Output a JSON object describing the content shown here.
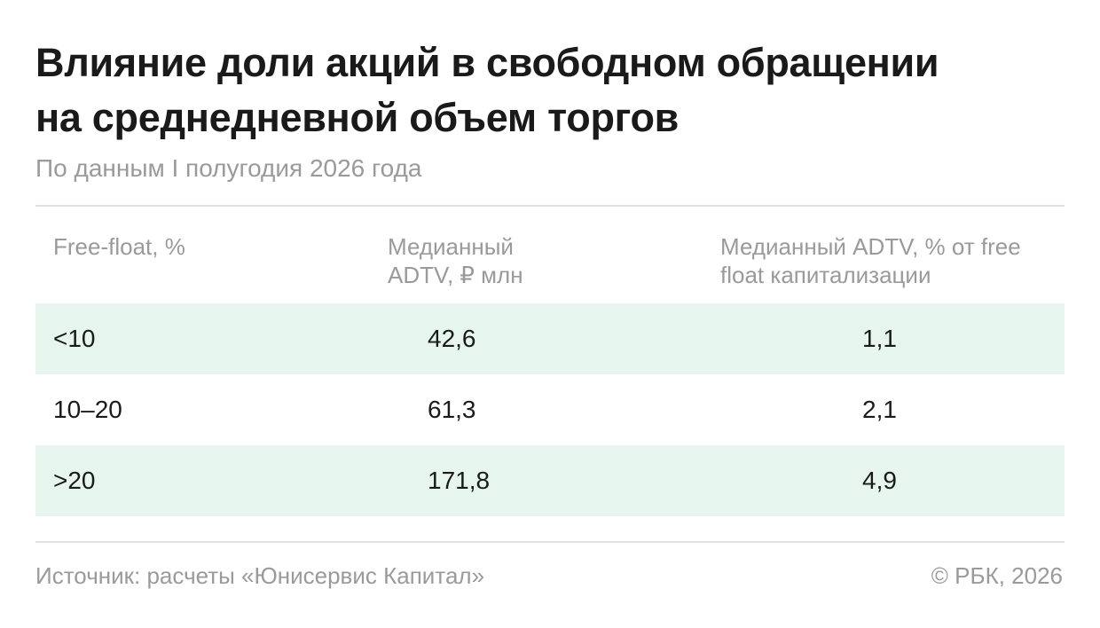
{
  "header": {
    "title_lines": [
      "Влияние доли акций в свободном обращении",
      "на среднедневной объем торгов"
    ],
    "subtitle": "По данным I полугодия 2026 года"
  },
  "table": {
    "columns": [
      "Free-float, %",
      "Медианный ADTV, ₽ млн",
      "Медианный ADTV, % от free float капитализации"
    ],
    "rows": [
      [
        "<10",
        "42,6",
        "1,1"
      ],
      [
        "10–20",
        "61,3",
        "2,1"
      ],
      [
        ">20",
        "171,8",
        "4,9"
      ]
    ]
  },
  "footer": {
    "source": "Источник: расчеты «Юнисервис Капитал»",
    "copyright": "© РБК, 2026"
  }
}
